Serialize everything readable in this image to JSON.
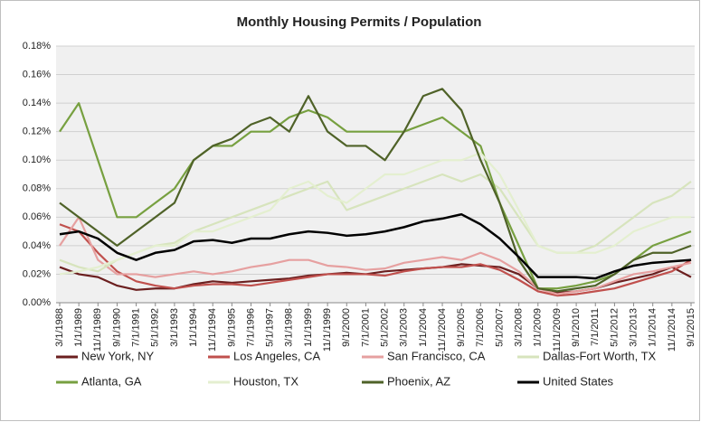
{
  "chart_data": {
    "type": "line",
    "title": "Monthly Housing Permits / Population",
    "categories": [
      "3/1/1988",
      "1/1/1989",
      "11/1/1989",
      "9/1/1990",
      "7/1/1991",
      "5/1/1992",
      "3/1/1993",
      "1/1/1994",
      "11/1/1994",
      "9/1/1995",
      "7/1/1996",
      "5/1/1997",
      "3/1/1998",
      "1/1/1999",
      "11/1/1999",
      "9/1/2000",
      "7/1/2001",
      "5/1/2002",
      "3/1/2003",
      "1/1/2004",
      "11/1/2004",
      "9/1/2005",
      "7/1/2006",
      "5/1/2007",
      "3/1/2008",
      "1/1/2009",
      "11/1/2009",
      "9/1/2010",
      "7/1/2011",
      "5/1/2012",
      "3/1/2013",
      "1/1/2014",
      "11/1/2014",
      "9/1/2015"
    ],
    "series": [
      {
        "name": "New York, NY",
        "color": "#6b1f1f",
        "values": [
          0.025,
          0.02,
          0.018,
          0.012,
          0.009,
          0.01,
          0.01,
          0.013,
          0.015,
          0.014,
          0.015,
          0.016,
          0.017,
          0.019,
          0.02,
          0.021,
          0.02,
          0.022,
          0.023,
          0.024,
          0.025,
          0.027,
          0.026,
          0.025,
          0.02,
          0.01,
          0.007,
          0.008,
          0.01,
          0.014,
          0.017,
          0.02,
          0.025,
          0.018
        ]
      },
      {
        "name": "Los Angeles, CA",
        "color": "#c0504d",
        "values": [
          0.055,
          0.05,
          0.035,
          0.022,
          0.015,
          0.012,
          0.01,
          0.012,
          0.013,
          0.013,
          0.012,
          0.014,
          0.016,
          0.018,
          0.02,
          0.02,
          0.02,
          0.019,
          0.022,
          0.024,
          0.025,
          0.025,
          0.027,
          0.023,
          0.016,
          0.008,
          0.005,
          0.006,
          0.008,
          0.01,
          0.014,
          0.018,
          0.022,
          0.03
        ]
      },
      {
        "name": "San Francisco, CA",
        "color": "#e6a0a0",
        "values": [
          0.04,
          0.06,
          0.03,
          0.02,
          0.02,
          0.018,
          0.02,
          0.022,
          0.02,
          0.022,
          0.025,
          0.027,
          0.03,
          0.03,
          0.026,
          0.025,
          0.023,
          0.024,
          0.028,
          0.03,
          0.032,
          0.03,
          0.035,
          0.03,
          0.022,
          0.01,
          0.006,
          0.008,
          0.01,
          0.015,
          0.02,
          0.022,
          0.025,
          0.028
        ]
      },
      {
        "name": "Dallas-Fort Worth, TX",
        "color": "#d7e4bd",
        "values": [
          0.03,
          0.025,
          0.022,
          0.03,
          0.035,
          0.04,
          0.042,
          0.05,
          0.055,
          0.06,
          0.065,
          0.07,
          0.075,
          0.08,
          0.085,
          0.065,
          0.07,
          0.075,
          0.08,
          0.085,
          0.09,
          0.085,
          0.09,
          0.08,
          0.06,
          0.04,
          0.035,
          0.035,
          0.04,
          0.05,
          0.06,
          0.07,
          0.075,
          0.085
        ]
      },
      {
        "name": "Atlanta, GA",
        "color": "#77a040",
        "values": [
          0.12,
          0.14,
          0.1,
          0.06,
          0.06,
          0.07,
          0.08,
          0.1,
          0.11,
          0.11,
          0.12,
          0.12,
          0.13,
          0.135,
          0.13,
          0.12,
          0.12,
          0.12,
          0.12,
          0.125,
          0.13,
          0.12,
          0.11,
          0.07,
          0.04,
          0.01,
          0.01,
          0.012,
          0.015,
          0.02,
          0.03,
          0.04,
          0.045,
          0.05
        ]
      },
      {
        "name": "Houston, TX",
        "color": "#e4efd0",
        "values": [
          0.02,
          0.022,
          0.025,
          0.03,
          0.035,
          0.04,
          0.04,
          0.05,
          0.05,
          0.055,
          0.06,
          0.065,
          0.08,
          0.085,
          0.075,
          0.07,
          0.08,
          0.09,
          0.09,
          0.095,
          0.1,
          0.1,
          0.105,
          0.09,
          0.065,
          0.04,
          0.035,
          0.035,
          0.035,
          0.04,
          0.05,
          0.055,
          0.06,
          0.06
        ]
      },
      {
        "name": "Phoenix, AZ",
        "color": "#4f6228",
        "values": [
          0.07,
          0.06,
          0.05,
          0.04,
          0.05,
          0.06,
          0.07,
          0.1,
          0.11,
          0.115,
          0.125,
          0.13,
          0.12,
          0.145,
          0.12,
          0.11,
          0.11,
          0.1,
          0.12,
          0.145,
          0.15,
          0.135,
          0.1,
          0.07,
          0.03,
          0.01,
          0.008,
          0.01,
          0.012,
          0.02,
          0.03,
          0.035,
          0.035,
          0.04
        ]
      },
      {
        "name": "United States",
        "color": "#000000",
        "values": [
          0.048,
          0.05,
          0.045,
          0.035,
          0.03,
          0.035,
          0.037,
          0.043,
          0.044,
          0.042,
          0.045,
          0.045,
          0.048,
          0.05,
          0.049,
          0.047,
          0.048,
          0.05,
          0.053,
          0.057,
          0.059,
          0.062,
          0.055,
          0.045,
          0.032,
          0.018,
          0.018,
          0.018,
          0.017,
          0.022,
          0.026,
          0.028,
          0.029,
          0.03
        ]
      }
    ],
    "ylim": [
      0,
      0.18
    ],
    "yticks": [
      {
        "value": 0,
        "label": "0.00%"
      },
      {
        "value": 0.02,
        "label": "0.02%"
      },
      {
        "value": 0.04,
        "label": "0.04%"
      },
      {
        "value": 0.06,
        "label": "0.06%"
      },
      {
        "value": 0.08,
        "label": "0.08%"
      },
      {
        "value": 0.1,
        "label": "0.10%"
      },
      {
        "value": 0.12,
        "label": "0.12%"
      },
      {
        "value": 0.14,
        "label": "0.14%"
      },
      {
        "value": 0.16,
        "label": "0.16%"
      },
      {
        "value": 0.18,
        "label": "0.18%"
      }
    ],
    "grid": true,
    "legend": "bottom"
  }
}
